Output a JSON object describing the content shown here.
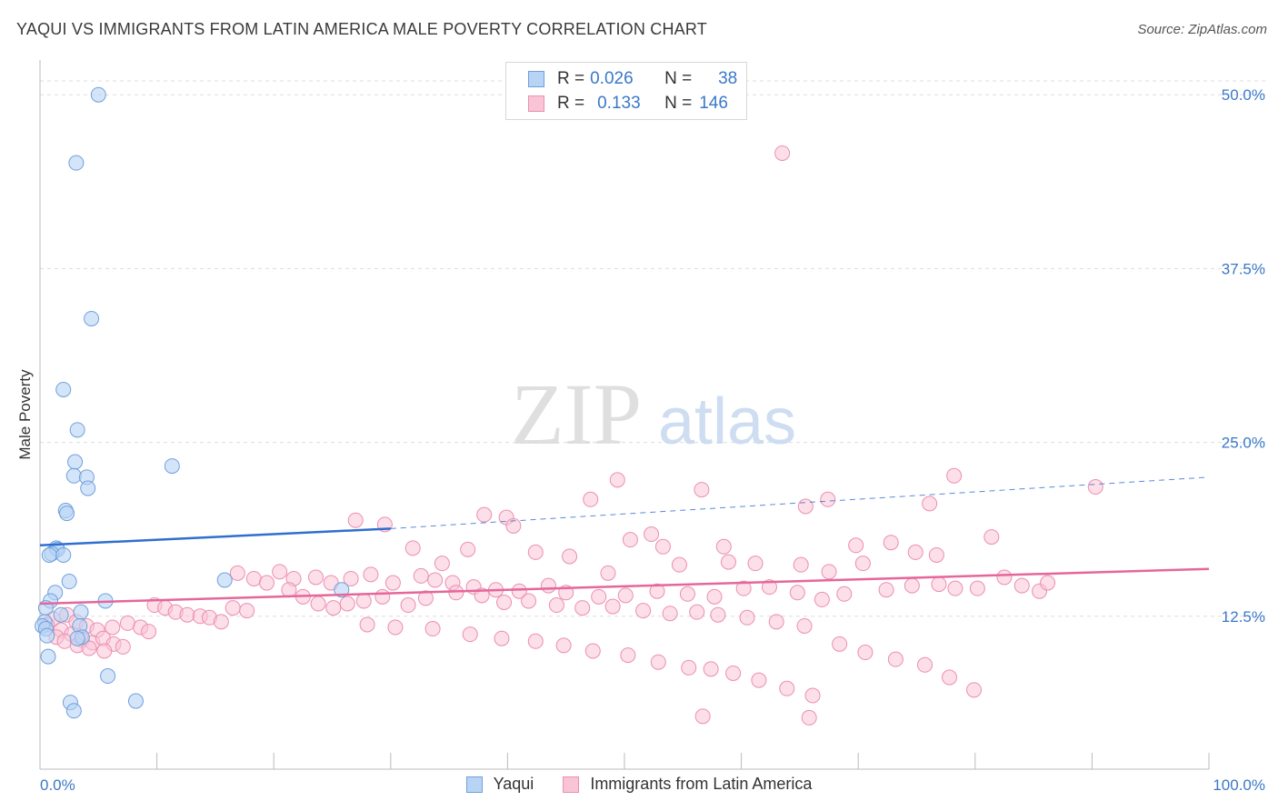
{
  "header": {
    "title": "YAQUI VS IMMIGRANTS FROM LATIN AMERICA MALE POVERTY CORRELATION CHART",
    "source": "Source: ZipAtlas.com"
  },
  "legend": {
    "row1": {
      "r_label": "R =",
      "r_value": "0.026",
      "n_label": "N =",
      "n_value": "38"
    },
    "row2": {
      "r_label": "R =",
      "r_value": "0.133",
      "n_label": "N =",
      "n_value": "146"
    }
  },
  "watermark": {
    "zip": "ZIP",
    "atlas": "atlas"
  },
  "colors": {
    "yaqui_fill": "#b8d4f5",
    "yaqui_stroke": "#6fa0dc",
    "yaqui_line": "#2f6fcf",
    "imm_fill": "#f9c4d6",
    "imm_stroke": "#eb8fb0",
    "imm_line": "#e5679a",
    "tick_label": "#3a78c9",
    "grid": "#dddddd"
  },
  "chart_data": {
    "type": "scatter",
    "title": "YAQUI VS IMMIGRANTS FROM LATIN AMERICA MALE POVERTY CORRELATION CHART",
    "xlabel": "",
    "ylabel": "Male Poverty",
    "xlim": [
      0,
      100
    ],
    "ylim": [
      1.5,
      52.5
    ],
    "x_tick_labels": [
      "0.0%",
      "100.0%"
    ],
    "y_ticks": [
      12.5,
      25.0,
      37.5,
      50.0
    ],
    "y_tick_labels": [
      "12.5%",
      "25.0%",
      "37.5%",
      "50.0%"
    ],
    "grid": true,
    "legend_position": "bottom-center",
    "series": [
      {
        "name": "Yaqui",
        "r": 0.026,
        "n": 38,
        "trend": {
          "x": [
            0,
            30
          ],
          "y": [
            17.6,
            18.8
          ]
        },
        "trend_extension": {
          "x": [
            30,
            100
          ],
          "y": [
            18.8,
            22.5
          ]
        },
        "points": [
          [
            5.0,
            50.0
          ],
          [
            3.1,
            45.1
          ],
          [
            4.4,
            33.9
          ],
          [
            2.0,
            28.8
          ],
          [
            3.2,
            25.9
          ],
          [
            11.3,
            23.3
          ],
          [
            3.0,
            23.6
          ],
          [
            2.9,
            22.6
          ],
          [
            4.0,
            22.5
          ],
          [
            4.1,
            21.7
          ],
          [
            2.2,
            20.1
          ],
          [
            2.3,
            19.9
          ],
          [
            1.4,
            17.4
          ],
          [
            1.5,
            17.3
          ],
          [
            1.0,
            17.0
          ],
          [
            0.8,
            16.9
          ],
          [
            2.0,
            16.9
          ],
          [
            15.8,
            15.1
          ],
          [
            2.5,
            15.0
          ],
          [
            25.8,
            14.4
          ],
          [
            1.3,
            14.2
          ],
          [
            0.9,
            13.6
          ],
          [
            5.6,
            13.6
          ],
          [
            0.5,
            13.1
          ],
          [
            3.5,
            12.8
          ],
          [
            1.8,
            12.6
          ],
          [
            0.4,
            12.1
          ],
          [
            0.2,
            11.8
          ],
          [
            0.5,
            11.6
          ],
          [
            3.4,
            11.8
          ],
          [
            0.6,
            11.1
          ],
          [
            3.6,
            11.0
          ],
          [
            3.2,
            10.9
          ],
          [
            0.7,
            9.6
          ],
          [
            5.8,
            8.2
          ],
          [
            2.6,
            6.3
          ],
          [
            8.2,
            6.4
          ],
          [
            2.9,
            5.7
          ]
        ]
      },
      {
        "name": "Immigrants from Latin America",
        "r": 0.133,
        "n": 146,
        "trend": {
          "x": [
            0,
            100
          ],
          "y": [
            13.4,
            15.9
          ]
        },
        "points": [
          [
            63.5,
            45.8
          ],
          [
            49.4,
            22.3
          ],
          [
            56.6,
            21.6
          ],
          [
            67.4,
            20.9
          ],
          [
            78.2,
            22.6
          ],
          [
            90.3,
            21.8
          ],
          [
            47.1,
            20.9
          ],
          [
            38.0,
            19.8
          ],
          [
            39.9,
            19.6
          ],
          [
            65.5,
            20.4
          ],
          [
            76.1,
            20.6
          ],
          [
            27.0,
            19.4
          ],
          [
            29.5,
            19.1
          ],
          [
            40.5,
            19.0
          ],
          [
            50.5,
            18.0
          ],
          [
            52.3,
            18.4
          ],
          [
            53.3,
            17.5
          ],
          [
            42.4,
            17.1
          ],
          [
            58.5,
            17.5
          ],
          [
            81.4,
            18.2
          ],
          [
            69.8,
            17.6
          ],
          [
            72.8,
            17.8
          ],
          [
            74.9,
            17.1
          ],
          [
            76.7,
            16.9
          ],
          [
            31.9,
            17.4
          ],
          [
            34.4,
            16.3
          ],
          [
            36.6,
            17.3
          ],
          [
            45.3,
            16.8
          ],
          [
            54.7,
            16.2
          ],
          [
            58.9,
            16.4
          ],
          [
            61.2,
            16.3
          ],
          [
            65.1,
            16.2
          ],
          [
            67.5,
            15.7
          ],
          [
            70.4,
            16.3
          ],
          [
            48.6,
            15.6
          ],
          [
            20.5,
            15.7
          ],
          [
            21.7,
            15.2
          ],
          [
            23.6,
            15.3
          ],
          [
            24.9,
            14.9
          ],
          [
            26.6,
            15.2
          ],
          [
            28.3,
            15.5
          ],
          [
            30.2,
            14.9
          ],
          [
            32.6,
            15.4
          ],
          [
            33.8,
            15.1
          ],
          [
            35.3,
            14.9
          ],
          [
            37.1,
            14.6
          ],
          [
            39.0,
            14.4
          ],
          [
            41.0,
            14.3
          ],
          [
            43.5,
            14.7
          ],
          [
            45.0,
            14.2
          ],
          [
            47.8,
            13.9
          ],
          [
            50.1,
            14.0
          ],
          [
            52.8,
            14.3
          ],
          [
            55.4,
            14.1
          ],
          [
            57.7,
            13.9
          ],
          [
            60.2,
            14.5
          ],
          [
            62.4,
            14.6
          ],
          [
            64.8,
            14.2
          ],
          [
            66.9,
            13.7
          ],
          [
            68.8,
            14.1
          ],
          [
            72.4,
            14.4
          ],
          [
            74.6,
            14.7
          ],
          [
            76.9,
            14.8
          ],
          [
            78.3,
            14.5
          ],
          [
            80.2,
            14.5
          ],
          [
            82.5,
            15.3
          ],
          [
            84.0,
            14.7
          ],
          [
            85.5,
            14.3
          ],
          [
            86.2,
            14.9
          ],
          [
            16.9,
            15.6
          ],
          [
            18.3,
            15.2
          ],
          [
            19.4,
            14.9
          ],
          [
            21.3,
            14.4
          ],
          [
            22.5,
            13.9
          ],
          [
            23.8,
            13.4
          ],
          [
            25.1,
            13.1
          ],
          [
            26.3,
            13.4
          ],
          [
            27.7,
            13.6
          ],
          [
            29.3,
            13.9
          ],
          [
            31.5,
            13.3
          ],
          [
            33.0,
            13.8
          ],
          [
            35.6,
            14.2
          ],
          [
            37.8,
            14.0
          ],
          [
            39.7,
            13.5
          ],
          [
            41.8,
            13.6
          ],
          [
            44.2,
            13.3
          ],
          [
            46.4,
            13.1
          ],
          [
            49.0,
            13.2
          ],
          [
            51.6,
            12.9
          ],
          [
            53.9,
            12.7
          ],
          [
            56.2,
            12.8
          ],
          [
            58.0,
            12.6
          ],
          [
            60.5,
            12.4
          ],
          [
            63.0,
            12.1
          ],
          [
            65.4,
            11.8
          ],
          [
            9.8,
            13.3
          ],
          [
            10.7,
            13.1
          ],
          [
            11.6,
            12.8
          ],
          [
            12.6,
            12.6
          ],
          [
            13.7,
            12.5
          ],
          [
            14.5,
            12.4
          ],
          [
            15.5,
            12.1
          ],
          [
            16.5,
            13.1
          ],
          [
            17.7,
            12.9
          ],
          [
            2.3,
            12.6
          ],
          [
            3.1,
            12.1
          ],
          [
            4.0,
            11.8
          ],
          [
            4.9,
            11.5
          ],
          [
            6.2,
            11.7
          ],
          [
            7.5,
            12.0
          ],
          [
            8.6,
            11.7
          ],
          [
            9.3,
            11.4
          ],
          [
            1.1,
            12.3
          ],
          [
            1.8,
            11.5
          ],
          [
            2.7,
            11.2
          ],
          [
            3.6,
            10.8
          ],
          [
            4.5,
            10.6
          ],
          [
            5.4,
            10.9
          ],
          [
            6.3,
            10.5
          ],
          [
            7.1,
            10.3
          ],
          [
            0.6,
            11.9
          ],
          [
            1.4,
            11.0
          ],
          [
            2.1,
            10.7
          ],
          [
            3.2,
            10.4
          ],
          [
            4.2,
            10.2
          ],
          [
            5.5,
            10.0
          ],
          [
            28.0,
            11.9
          ],
          [
            30.4,
            11.7
          ],
          [
            33.6,
            11.6
          ],
          [
            36.8,
            11.2
          ],
          [
            39.5,
            10.9
          ],
          [
            42.4,
            10.7
          ],
          [
            44.8,
            10.4
          ],
          [
            47.3,
            10.0
          ],
          [
            50.3,
            9.7
          ],
          [
            52.9,
            9.2
          ],
          [
            55.5,
            8.8
          ],
          [
            57.4,
            8.7
          ],
          [
            59.3,
            8.4
          ],
          [
            61.5,
            7.9
          ],
          [
            63.9,
            7.3
          ],
          [
            66.1,
            6.8
          ],
          [
            68.4,
            10.5
          ],
          [
            70.6,
            9.9
          ],
          [
            73.2,
            9.4
          ],
          [
            75.7,
            9.0
          ],
          [
            77.8,
            8.1
          ],
          [
            79.9,
            7.2
          ],
          [
            56.7,
            5.3
          ],
          [
            65.8,
            5.2
          ]
        ]
      }
    ]
  }
}
